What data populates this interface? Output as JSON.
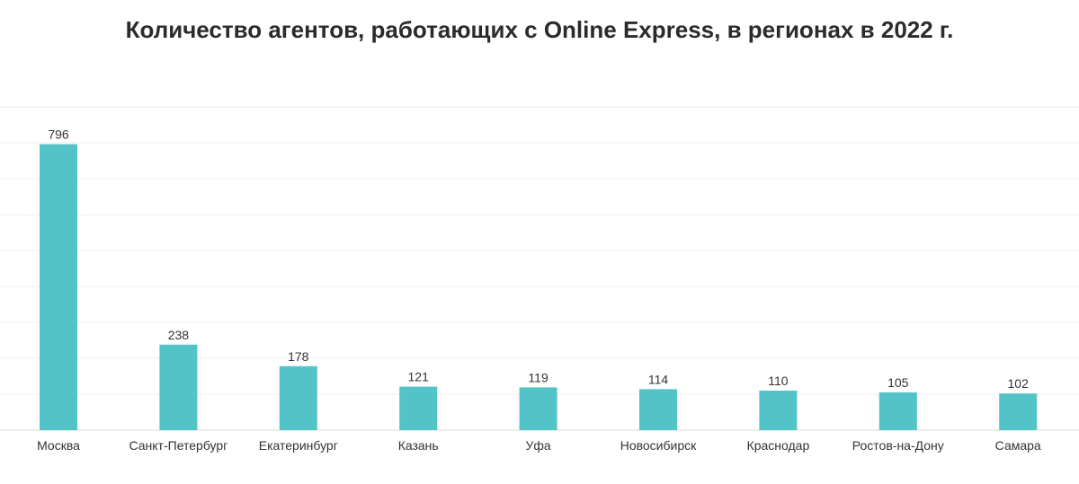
{
  "chart_data": {
    "type": "bar",
    "title": "Количество агентов, работающих с Online Express, в регионах в 2022 г.",
    "categories": [
      "Москва",
      "Санкт-Петербург",
      "Екатеринбург",
      "Казань",
      "Уфа",
      "Новосибирск",
      "Краснодар",
      "Ростов-на-Дону",
      "Самара"
    ],
    "values": [
      796,
      238,
      178,
      121,
      119,
      114,
      110,
      105,
      102
    ],
    "xlabel": "",
    "ylabel": "",
    "ylim": [
      0,
      900
    ],
    "grid": true,
    "grid_step": 100,
    "bar_color": "#52c3c7"
  }
}
